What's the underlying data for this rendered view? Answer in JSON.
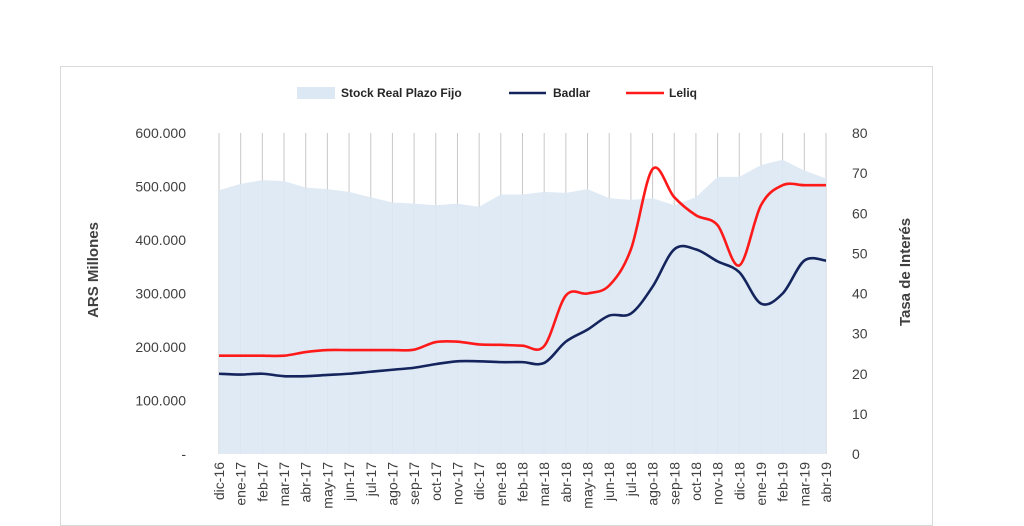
{
  "chart_data": {
    "type": "area",
    "categories": [
      "dic-16",
      "ene-17",
      "feb-17",
      "mar-17",
      "abr-17",
      "may-17",
      "jun-17",
      "jul-17",
      "ago-17",
      "sep-17",
      "oct-17",
      "nov-17",
      "dic-17",
      "ene-18",
      "feb-18",
      "mar-18",
      "abr-18",
      "may-18",
      "jun-18",
      "jul-18",
      "ago-18",
      "sep-18",
      "oct-18",
      "nov-18",
      "dic-18",
      "ene-19",
      "feb-19",
      "mar-19",
      "abr-19"
    ],
    "series": [
      {
        "name": "Stock Real Plazo Fijo",
        "type": "area",
        "axis": "left",
        "color": "#dce8f4",
        "values": [
          493000,
          505000,
          512000,
          510000,
          498000,
          495000,
          490000,
          480000,
          470000,
          468000,
          465000,
          468000,
          462000,
          485000,
          485000,
          490000,
          488000,
          495000,
          478000,
          475000,
          478000,
          465000,
          480000,
          518000,
          518000,
          540000,
          550000,
          530000,
          515000
        ]
      },
      {
        "name": "Badlar",
        "type": "line",
        "axis": "right",
        "color": "#14245c",
        "values": [
          20,
          19.8,
          20,
          19.4,
          19.4,
          19.7,
          20,
          20.5,
          21,
          21.5,
          22.4,
          23.1,
          23.1,
          22.9,
          22.9,
          22.7,
          28,
          31,
          34.5,
          35,
          41.7,
          51,
          51,
          48,
          45.3,
          37.5,
          40,
          48.2,
          48.2
        ]
      },
      {
        "name": "Leliq",
        "type": "line",
        "axis": "right",
        "color": "#ff1a1a",
        "values": [
          24.5,
          24.5,
          24.5,
          24.5,
          25.4,
          25.9,
          25.9,
          25.9,
          25.9,
          26,
          27.9,
          28,
          27.3,
          27.2,
          27,
          26.9,
          39.5,
          40,
          42,
          51,
          71,
          64,
          59.5,
          57,
          47,
          62,
          67,
          67,
          67
        ]
      }
    ],
    "left_axis": {
      "label": "ARS Millones",
      "ticks": [
        "-",
        "100.000",
        "200.000",
        "300.000",
        "400.000",
        "500.000",
        "600.000"
      ],
      "min": 0,
      "max": 600000
    },
    "right_axis": {
      "label": "Tasa de Interés",
      "ticks": [
        "0",
        "10",
        "20",
        "30",
        "40",
        "50",
        "60",
        "70",
        "80"
      ],
      "min": 0,
      "max": 80
    },
    "xlabels_shown": [
      "dic-16",
      "ene-17",
      "feb-17",
      "mar-17",
      "abr-17",
      "may-17",
      "jun-17",
      "jul-17",
      "ago-17",
      "sep-17",
      "oct-17",
      "nov-17",
      "dic-17",
      "ene-18",
      "feb-18",
      "mar-18",
      "abr-18",
      "may-18",
      "jun-18",
      "jul-18",
      "ago-18",
      "sep-18",
      "oct-18",
      "nov-18",
      "dic-18",
      "ene-19",
      "feb-19",
      "mar-19",
      "abr-19"
    ],
    "grid": "vertical",
    "legend_position": "top"
  }
}
